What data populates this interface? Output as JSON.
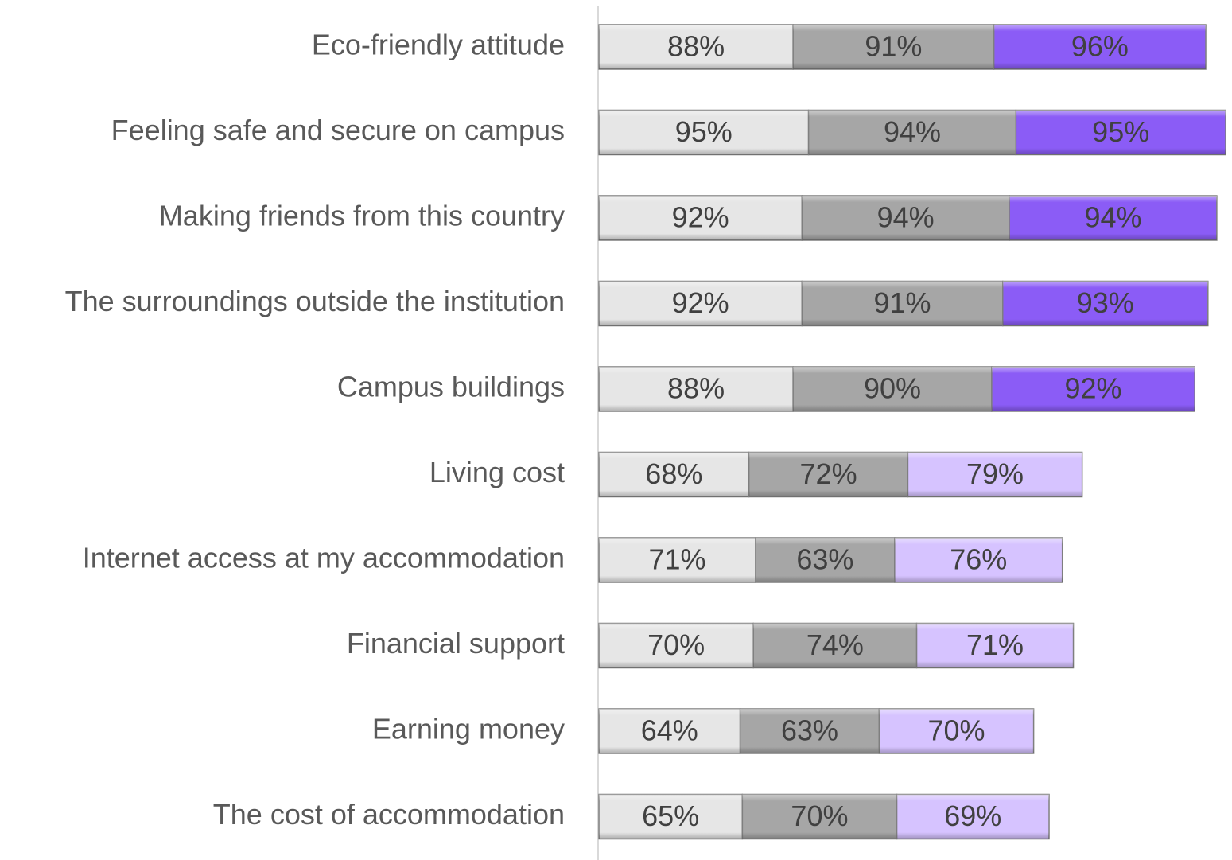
{
  "chart_data": {
    "type": "stacked-barh",
    "categories": [
      "Eco-friendly attitude",
      "Feeling safe and secure on campus",
      "Making friends from this country",
      "The surroundings outside the institution",
      "Campus buildings",
      "Living cost",
      "Internet access at my accommodation",
      "Financial support",
      "Earning money",
      "The cost of accommodation"
    ],
    "series": [
      {
        "color": "#e6e6e6",
        "values": [
          88,
          95,
          92,
          92,
          88,
          68,
          71,
          70,
          64,
          65
        ],
        "value_labels": [
          "88%",
          "95%",
          "92%",
          "92%",
          "88%",
          "68%",
          "71%",
          "70%",
          "64%",
          "65%"
        ]
      },
      {
        "color": "#a6a6a6",
        "values": [
          91,
          94,
          94,
          91,
          90,
          72,
          63,
          74,
          63,
          70
        ],
        "value_labels": [
          "91%",
          "94%",
          "94%",
          "91%",
          "90%",
          "72%",
          "63%",
          "74%",
          "63%",
          "70%"
        ]
      },
      {
        "colors": [
          "#8b5cf6",
          "#8b5cf6",
          "#8b5cf6",
          "#8b5cf6",
          "#8b5cf6",
          "#d6c3ff",
          "#d6c3ff",
          "#d6c3ff",
          "#d6c3ff",
          "#d6c3ff"
        ],
        "values": [
          96,
          95,
          94,
          93,
          92,
          79,
          76,
          71,
          70,
          69
        ],
        "value_labels": [
          "96%",
          "95%",
          "94%",
          "93%",
          "92%",
          "79%",
          "76%",
          "71%",
          "70%",
          "69%"
        ]
      }
    ]
  }
}
